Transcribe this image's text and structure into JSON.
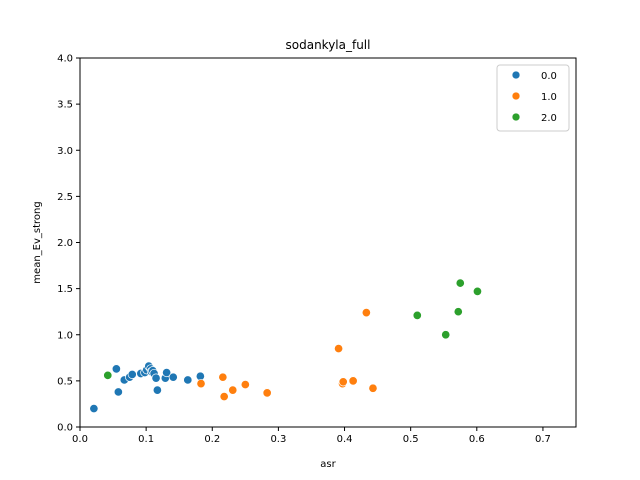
{
  "chart_data": {
    "type": "scatter",
    "title": "sodankyla_full",
    "xlabel": "asr",
    "ylabel": "mean_Ev_strong",
    "xlim": [
      0.0,
      0.75
    ],
    "ylim": [
      0.0,
      4.0
    ],
    "xticks": [
      "0.0",
      "0.1",
      "0.2",
      "0.3",
      "0.4",
      "0.5",
      "0.6",
      "0.7"
    ],
    "yticks": [
      "0.0",
      "0.5",
      "1.0",
      "1.5",
      "2.0",
      "2.5",
      "3.0",
      "3.5",
      "4.0"
    ],
    "grid": false,
    "legend_position": "top-right",
    "series": [
      {
        "name": "0.0",
        "color": "#1f77b4",
        "points": [
          [
            0.021,
            0.2
          ],
          [
            0.055,
            0.63
          ],
          [
            0.058,
            0.38
          ],
          [
            0.067,
            0.51
          ],
          [
            0.075,
            0.54
          ],
          [
            0.079,
            0.57
          ],
          [
            0.092,
            0.58
          ],
          [
            0.098,
            0.59
          ],
          [
            0.101,
            0.62
          ],
          [
            0.104,
            0.66
          ],
          [
            0.107,
            0.63
          ],
          [
            0.108,
            0.6
          ],
          [
            0.11,
            0.61
          ],
          [
            0.112,
            0.58
          ],
          [
            0.115,
            0.53
          ],
          [
            0.117,
            0.4
          ],
          [
            0.129,
            0.53
          ],
          [
            0.131,
            0.59
          ],
          [
            0.141,
            0.54
          ],
          [
            0.163,
            0.51
          ],
          [
            0.182,
            0.55
          ]
        ]
      },
      {
        "name": "1.0",
        "color": "#ff7f0e",
        "points": [
          [
            0.183,
            0.47
          ],
          [
            0.216,
            0.54
          ],
          [
            0.218,
            0.33
          ],
          [
            0.231,
            0.4
          ],
          [
            0.25,
            0.46
          ],
          [
            0.283,
            0.37
          ],
          [
            0.391,
            0.85
          ],
          [
            0.397,
            0.47
          ],
          [
            0.398,
            0.49
          ],
          [
            0.413,
            0.5
          ],
          [
            0.433,
            1.24
          ],
          [
            0.443,
            0.42
          ]
        ]
      },
      {
        "name": "2.0",
        "color": "#2ca02c",
        "points": [
          [
            0.042,
            0.56
          ],
          [
            0.51,
            1.21
          ],
          [
            0.553,
            1.0
          ],
          [
            0.572,
            1.25
          ],
          [
            0.575,
            1.56
          ],
          [
            0.601,
            1.47
          ]
        ]
      }
    ]
  }
}
